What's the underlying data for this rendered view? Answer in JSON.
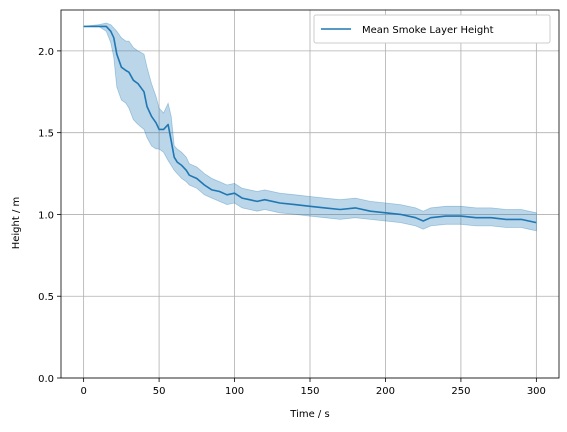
{
  "chart_data": {
    "type": "line",
    "title": "",
    "xlabel": "Time / s",
    "ylabel": "Height / m",
    "xlim": [
      -15,
      315
    ],
    "ylim": [
      0,
      2.25
    ],
    "xticks": [
      0,
      50,
      100,
      150,
      200,
      250,
      300
    ],
    "yticks": [
      0.0,
      0.5,
      1.0,
      1.5,
      2.0
    ],
    "xtick_labels": [
      "0",
      "50",
      "100",
      "150",
      "200",
      "250",
      "300"
    ],
    "ytick_labels": [
      "0.0",
      "0.5",
      "1.0",
      "1.5",
      "2.0"
    ],
    "grid": true,
    "legend": {
      "position": "top-right",
      "entries": [
        "Mean Smoke Layer Height"
      ]
    },
    "colors": {
      "line": "#1f77b4",
      "band": "#1f77b4",
      "grid": "#b0b0b0"
    },
    "series": [
      {
        "name": "Mean Smoke Layer Height",
        "x": [
          0,
          10,
          15,
          18,
          20,
          22,
          25,
          28,
          30,
          33,
          36,
          40,
          42,
          45,
          48,
          50,
          53,
          56,
          58,
          60,
          62,
          65,
          68,
          70,
          75,
          80,
          85,
          90,
          95,
          100,
          105,
          110,
          115,
          120,
          130,
          140,
          150,
          160,
          170,
          180,
          190,
          200,
          210,
          220,
          225,
          230,
          240,
          250,
          260,
          270,
          280,
          290,
          295,
          300
        ],
        "y": [
          2.15,
          2.15,
          2.15,
          2.12,
          2.08,
          1.98,
          1.9,
          1.88,
          1.87,
          1.82,
          1.8,
          1.75,
          1.66,
          1.6,
          1.56,
          1.52,
          1.52,
          1.55,
          1.45,
          1.35,
          1.32,
          1.3,
          1.27,
          1.24,
          1.22,
          1.18,
          1.15,
          1.14,
          1.12,
          1.13,
          1.1,
          1.09,
          1.08,
          1.09,
          1.07,
          1.06,
          1.05,
          1.04,
          1.03,
          1.04,
          1.02,
          1.01,
          1.0,
          0.98,
          0.96,
          0.98,
          0.99,
          0.99,
          0.98,
          0.98,
          0.97,
          0.97,
          0.96,
          0.95
        ],
        "lower": [
          2.15,
          2.15,
          2.12,
          2.05,
          1.96,
          1.78,
          1.7,
          1.68,
          1.65,
          1.58,
          1.55,
          1.52,
          1.47,
          1.42,
          1.4,
          1.4,
          1.38,
          1.33,
          1.3,
          1.27,
          1.25,
          1.22,
          1.2,
          1.18,
          1.16,
          1.12,
          1.1,
          1.08,
          1.06,
          1.07,
          1.04,
          1.03,
          1.02,
          1.03,
          1.01,
          1.0,
          0.99,
          0.98,
          0.97,
          0.98,
          0.97,
          0.96,
          0.95,
          0.93,
          0.91,
          0.93,
          0.94,
          0.94,
          0.93,
          0.93,
          0.92,
          0.92,
          0.91,
          0.9
        ],
        "upper": [
          2.15,
          2.16,
          2.17,
          2.16,
          2.14,
          2.12,
          2.08,
          2.06,
          2.06,
          2.02,
          2.0,
          1.98,
          1.9,
          1.8,
          1.72,
          1.65,
          1.62,
          1.68,
          1.6,
          1.42,
          1.4,
          1.38,
          1.35,
          1.31,
          1.29,
          1.25,
          1.22,
          1.2,
          1.18,
          1.19,
          1.16,
          1.15,
          1.14,
          1.15,
          1.13,
          1.12,
          1.11,
          1.1,
          1.09,
          1.1,
          1.08,
          1.07,
          1.06,
          1.04,
          1.02,
          1.04,
          1.05,
          1.05,
          1.04,
          1.04,
          1.03,
          1.03,
          1.02,
          1.01
        ]
      }
    ]
  }
}
